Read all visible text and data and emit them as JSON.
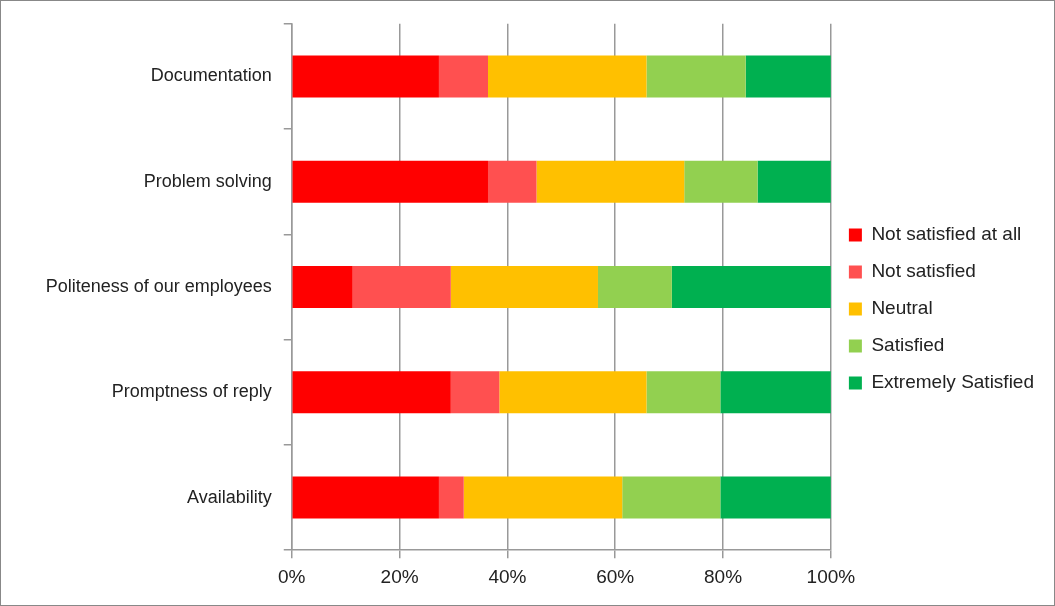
{
  "chart_data": {
    "type": "bar",
    "orientation": "horizontal",
    "stacked": true,
    "categories": [
      "Documentation",
      "Problem solving",
      "Politeness of our employees",
      "Promptness of reply",
      "Availability"
    ],
    "series": [
      {
        "name": "Not satisfied at all",
        "color": "#ff0000",
        "values": [
          27.3,
          36.4,
          11.3,
          29.5,
          27.3
        ]
      },
      {
        "name": "Not satisfied",
        "color": "#ff5050",
        "values": [
          9.1,
          9.0,
          18.2,
          9.0,
          4.6
        ]
      },
      {
        "name": "Neutral",
        "color": "#ffc000",
        "values": [
          29.4,
          27.4,
          27.3,
          27.3,
          29.4
        ]
      },
      {
        "name": "Satisfied",
        "color": "#92d050",
        "values": [
          18.4,
          13.6,
          13.7,
          13.7,
          18.2
        ]
      },
      {
        "name": "Extremely Satisfied",
        "color": "#00b050",
        "values": [
          15.8,
          13.6,
          29.5,
          20.5,
          20.5
        ]
      }
    ],
    "xlim": [
      0,
      100
    ],
    "xticks": [
      {
        "value": 0,
        "label": "0%"
      },
      {
        "value": 20,
        "label": "20%"
      },
      {
        "value": 40,
        "label": "40%"
      },
      {
        "value": 60,
        "label": "60%"
      },
      {
        "value": 80,
        "label": "80%"
      },
      {
        "value": 100,
        "label": "100%"
      }
    ],
    "grid": "x",
    "legend": "right"
  }
}
